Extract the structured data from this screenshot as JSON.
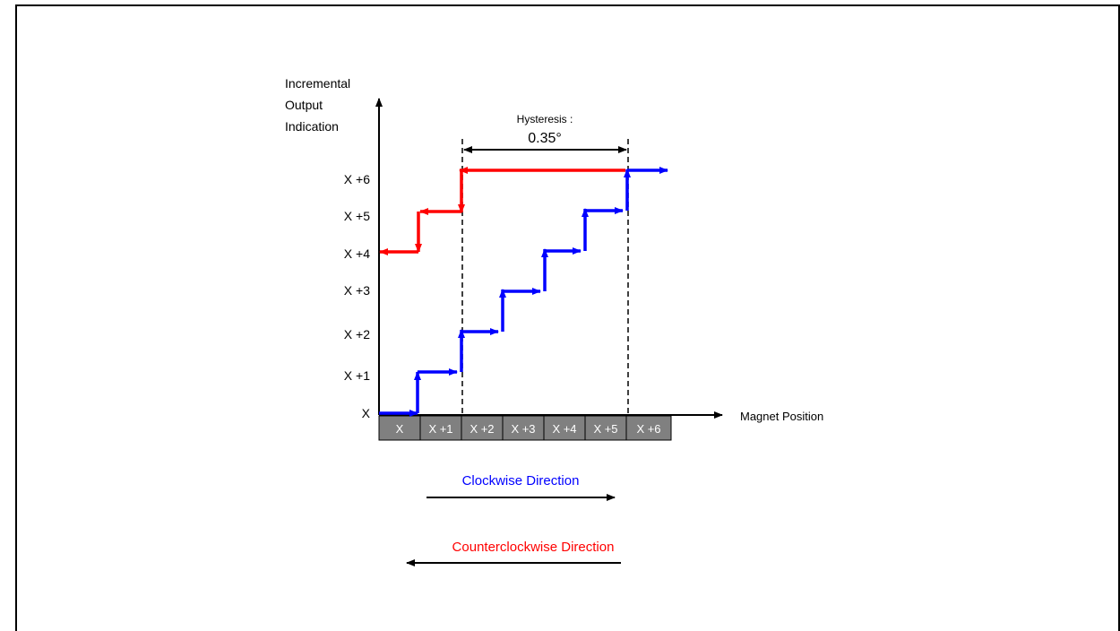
{
  "y_axis": {
    "label_lines": [
      "Incremental",
      "Output",
      "Indication"
    ],
    "tick_labels": [
      "X",
      "X +1",
      "X +2",
      "X +3",
      "X +4",
      "X +5",
      "X +6"
    ]
  },
  "x_axis": {
    "label": "Magnet Position",
    "cells": [
      "X",
      "X +1",
      "X +2",
      "X +3",
      "X +4",
      "X +5",
      "X +6"
    ]
  },
  "hysteresis": {
    "title": "Hysteresis :",
    "value": "0.35°"
  },
  "directions": {
    "clockwise": "Clockwise Direction",
    "counterclockwise": "Counterclockwise Direction"
  },
  "colors": {
    "clockwise": "#0000ff",
    "counterclockwise": "#ff0000",
    "cell_fill": "#808080",
    "cell_text": "#ffffff",
    "axis": "#000000"
  }
}
